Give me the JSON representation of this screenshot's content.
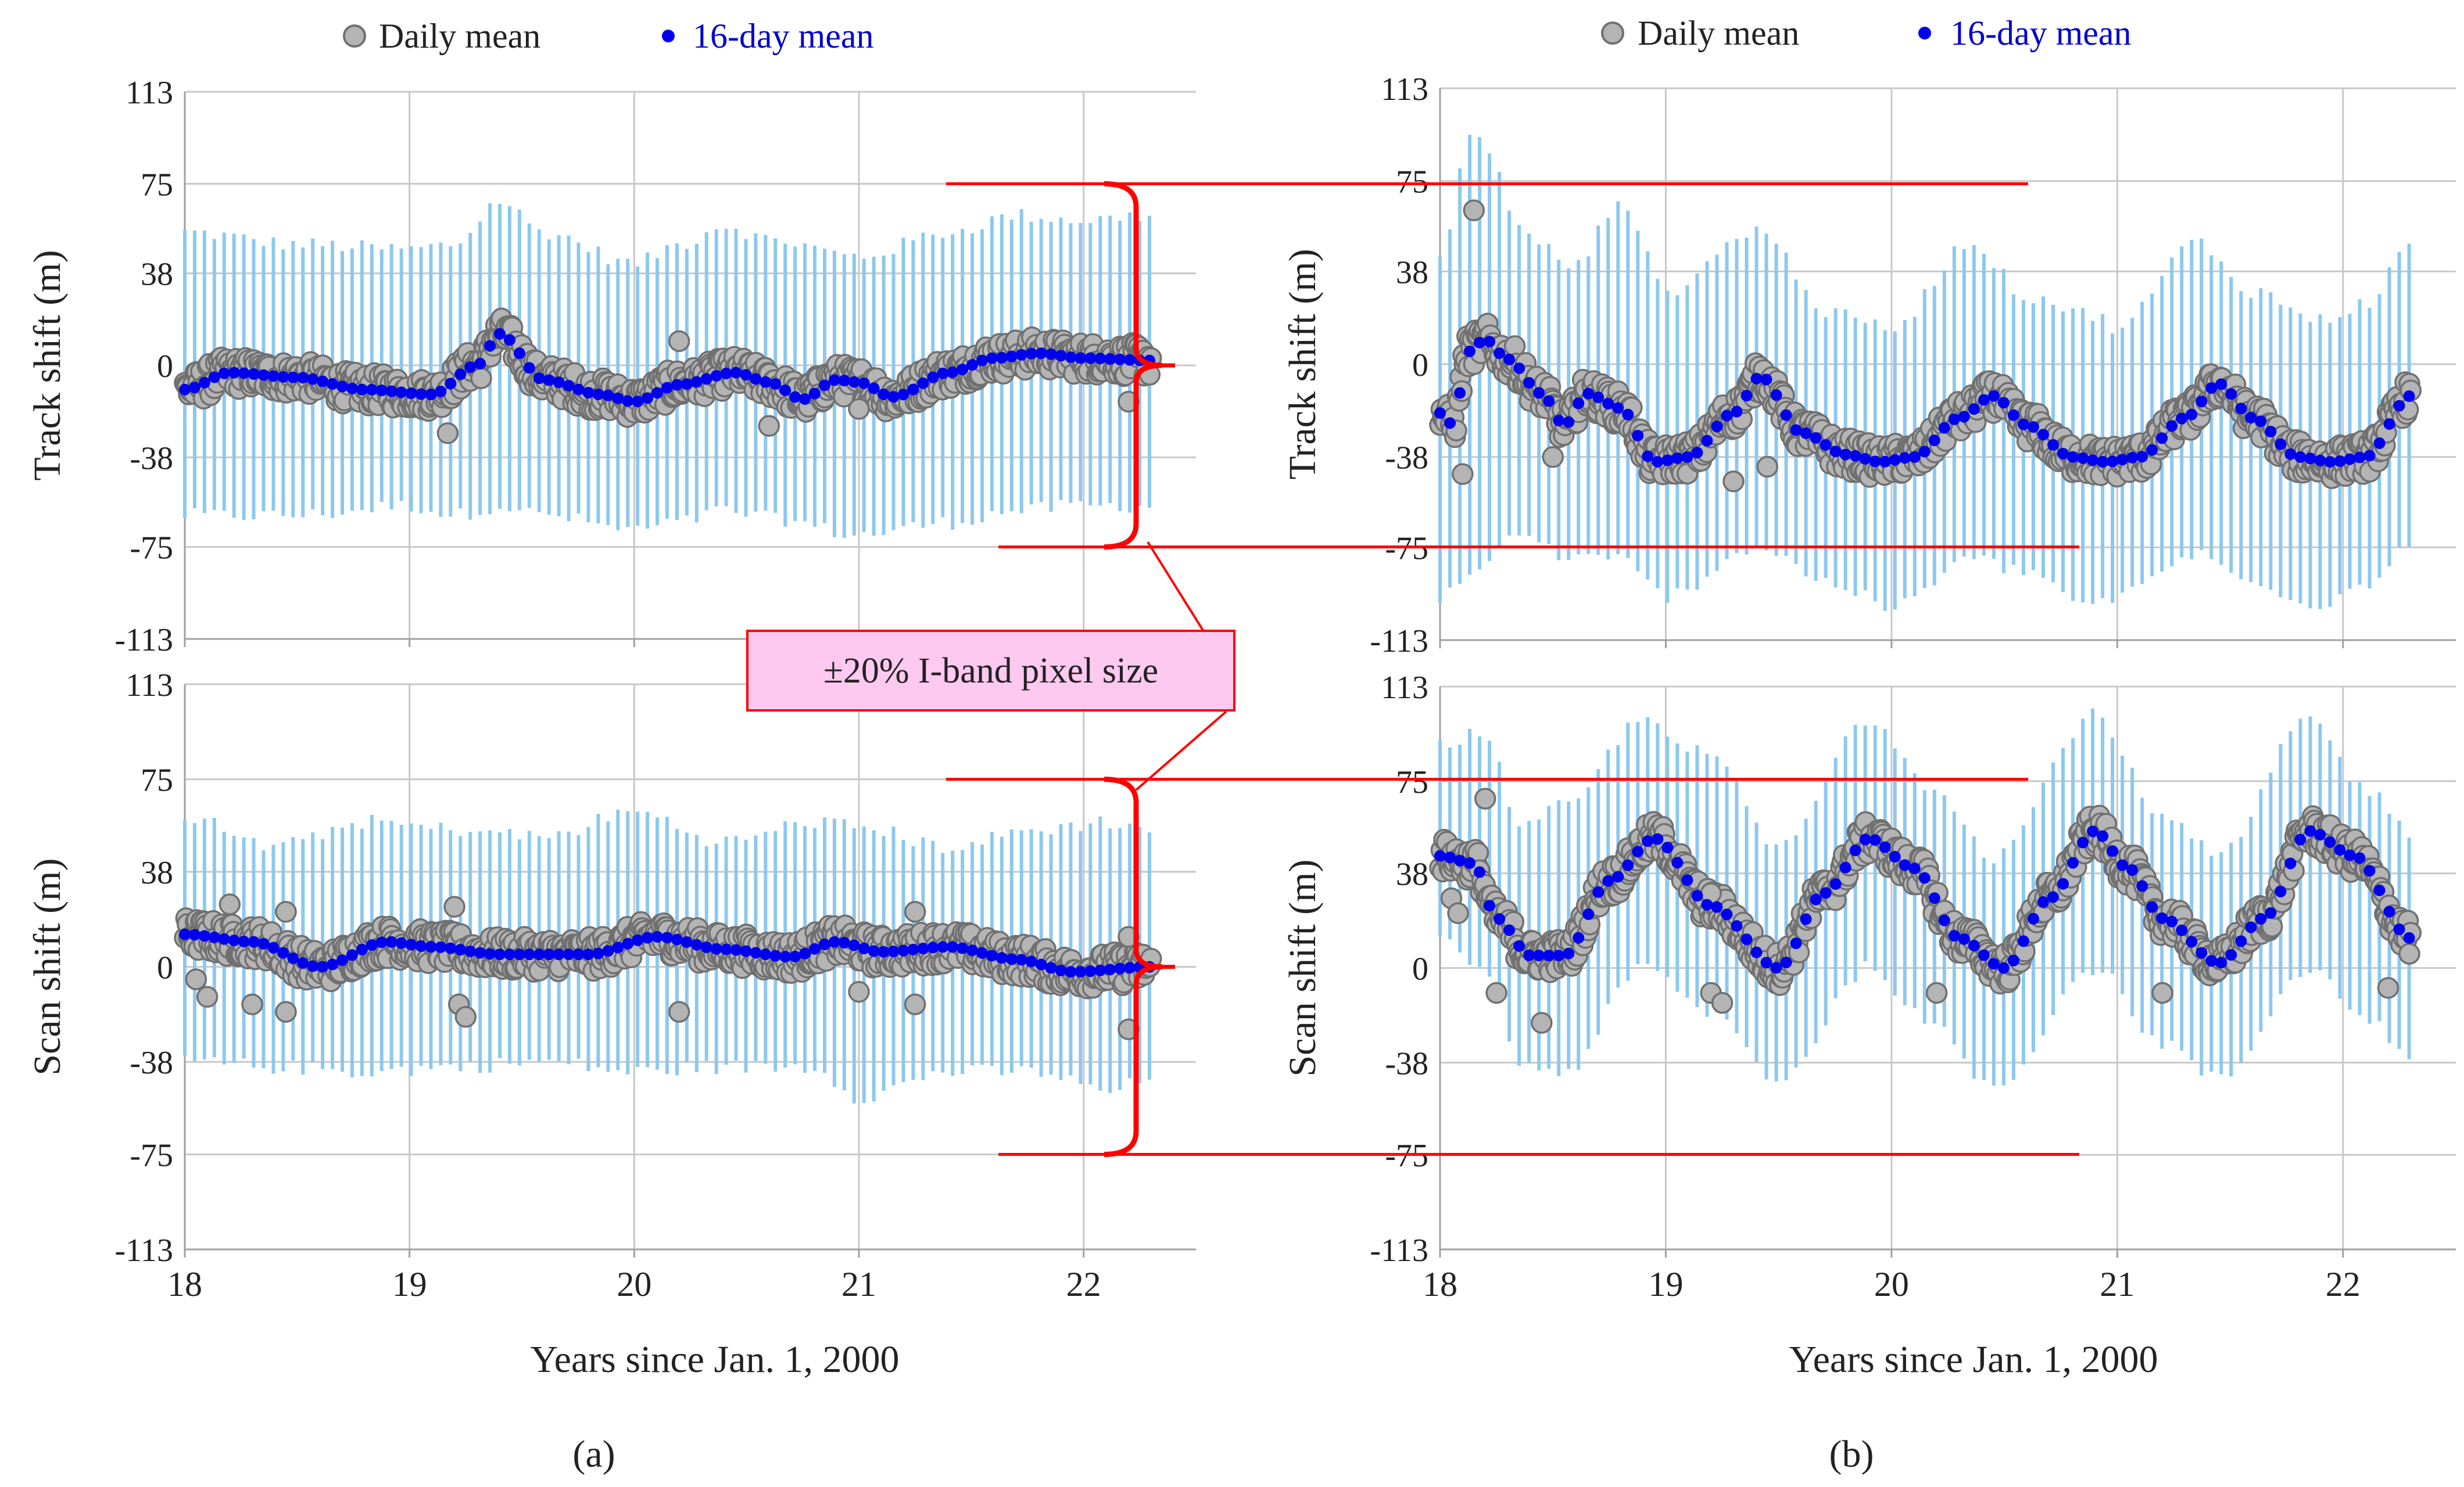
{
  "figure": {
    "legend": {
      "daily_label": "Daily mean",
      "mean16_label": "16-day mean"
    },
    "xlabel": "Years since Jan. 1, 2000",
    "annotation": "±20% I-band pixel size",
    "subfig_a": "(a)",
    "subfig_b": "(b)",
    "colors": {
      "daily": "#b4b4b4",
      "daily_edge": "#707070",
      "mean16": "#0000ee",
      "range": "#8cc8f0",
      "annotation": "#ff0000",
      "annotation_fill": "#fdc9f0",
      "grid": "#c8c8c8",
      "axis": "#a0a0a0",
      "legend_mean_text": "#0000cc"
    }
  },
  "chart_data": [
    {
      "id": "a-track",
      "type": "scatter",
      "panel": "a",
      "ylabel": "Track shift (m)",
      "xlim": [
        18,
        22.5
      ],
      "ylim": [
        -113,
        113
      ],
      "xticks": [
        18,
        19,
        20,
        21,
        22
      ],
      "xtick_labels": [
        "18",
        "19",
        "20",
        "21",
        "22"
      ],
      "yticks": [
        113,
        75,
        38,
        0,
        -38,
        -75,
        -113
      ],
      "ytick_labels": [
        "113",
        "75",
        "38",
        "0",
        "-38",
        "-75",
        "-113"
      ],
      "x_start": 18.0,
      "x_end": 22.3,
      "knots_x": [
        18.0,
        18.2,
        18.5,
        18.8,
        19.1,
        19.3,
        19.4,
        19.6,
        19.85,
        20.0,
        20.2,
        20.45,
        20.6,
        20.75,
        20.9,
        21.0,
        21.15,
        21.4,
        21.6,
        21.8,
        22.0,
        22.3
      ],
      "knots_y": [
        -10,
        -3,
        -5,
        -10,
        -12,
        0,
        13,
        -6,
        -12,
        -15,
        -8,
        -3,
        -7,
        -14,
        -6,
        -7,
        -13,
        -3,
        3,
        5,
        3,
        2
      ],
      "range_knots_x": [
        18.0,
        18.5,
        19.0,
        19.2,
        19.4,
        19.6,
        20.0,
        20.2,
        20.4,
        20.6,
        21.0,
        21.4,
        21.7,
        22.0,
        22.3
      ],
      "range_hi": [
        55,
        50,
        48,
        50,
        68,
        55,
        42,
        50,
        58,
        52,
        45,
        55,
        62,
        60,
        62
      ],
      "range_lo": [
        -62,
        -62,
        -58,
        -62,
        -58,
        -62,
        -68,
        -65,
        -60,
        -63,
        -70,
        -65,
        -60,
        -58,
        -58
      ],
      "outliers": [
        [
          19.17,
          -28
        ],
        [
          20.2,
          10
        ],
        [
          20.6,
          -25
        ],
        [
          21.0,
          -18
        ],
        [
          22.2,
          -15
        ]
      ],
      "bracket": [
        -75,
        75
      ],
      "ref_lines": [
        75,
        -75
      ]
    },
    {
      "id": "a-scan",
      "type": "scatter",
      "panel": "a",
      "ylabel": "Scan shift (m)",
      "xlim": [
        18,
        22.5
      ],
      "ylim": [
        -113,
        113
      ],
      "xticks": [
        18,
        19,
        20,
        21,
        22
      ],
      "xtick_labels": [
        "18",
        "19",
        "20",
        "21",
        "22"
      ],
      "yticks": [
        113,
        75,
        38,
        0,
        -38,
        -75,
        -113
      ],
      "ytick_labels": [
        "113",
        "75",
        "38",
        "0",
        "-38",
        "-75",
        "-113"
      ],
      "x_start": 18.0,
      "x_end": 22.3,
      "knots_x": [
        18.0,
        18.3,
        18.6,
        18.9,
        19.1,
        19.4,
        19.8,
        20.1,
        20.4,
        20.7,
        20.9,
        21.1,
        21.4,
        21.7,
        21.95,
        22.3
      ],
      "knots_y": [
        13,
        10,
        0,
        10,
        8,
        5,
        5,
        12,
        7,
        4,
        10,
        6,
        8,
        3,
        -2,
        0
      ],
      "range_knots_x": [
        18.0,
        18.4,
        18.8,
        19.2,
        19.6,
        20.0,
        20.4,
        20.8,
        21.0,
        21.4,
        21.8,
        22.1,
        22.3
      ],
      "range_hi": [
        60,
        48,
        58,
        55,
        52,
        62,
        50,
        58,
        56,
        48,
        55,
        58,
        55
      ],
      "range_lo": [
        -38,
        -40,
        -42,
        -40,
        -38,
        -42,
        -40,
        -40,
        -52,
        -42,
        -42,
        -50,
        -45
      ],
      "outliers": [
        [
          18.05,
          -5
        ],
        [
          18.1,
          -12
        ],
        [
          18.2,
          25
        ],
        [
          18.45,
          22
        ],
        [
          18.45,
          -18
        ],
        [
          18.3,
          -15
        ],
        [
          19.2,
          24
        ],
        [
          19.22,
          -15
        ],
        [
          19.25,
          -20
        ],
        [
          20.2,
          -18
        ],
        [
          21.0,
          -10
        ],
        [
          21.25,
          22
        ],
        [
          21.25,
          -15
        ],
        [
          22.2,
          -25
        ],
        [
          22.2,
          12
        ]
      ],
      "bracket": [
        -75,
        75
      ],
      "ref_lines": [
        75,
        -75
      ]
    },
    {
      "id": "b-track",
      "type": "scatter",
      "panel": "b",
      "ylabel": "Track shift (m)",
      "xlim": [
        18,
        22.5
      ],
      "ylim": [
        -113,
        113
      ],
      "xticks": [
        18,
        19,
        20,
        21,
        22
      ],
      "xtick_labels": [
        "18",
        "19",
        "20",
        "21",
        "22"
      ],
      "yticks": [
        113,
        75,
        38,
        0,
        -38,
        -75,
        -113
      ],
      "ytick_labels": [
        "113",
        "75",
        "38",
        "0",
        "-38",
        "-75",
        "-113"
      ],
      "x_start": 18.0,
      "x_end": 22.3,
      "knots_x": [
        18.0,
        18.06,
        18.12,
        18.2,
        18.3,
        18.45,
        18.55,
        18.65,
        18.8,
        18.95,
        19.1,
        19.3,
        19.42,
        19.6,
        19.8,
        19.95,
        20.1,
        20.3,
        20.45,
        20.6,
        20.8,
        20.95,
        21.1,
        21.3,
        21.45,
        21.6,
        21.8,
        21.95,
        22.1,
        22.3
      ],
      "knots_y": [
        -20,
        -25,
        5,
        10,
        2,
        -12,
        -25,
        -12,
        -18,
        -40,
        -38,
        -20,
        -5,
        -28,
        -37,
        -40,
        -38,
        -22,
        -13,
        -25,
        -38,
        -40,
        -38,
        -22,
        -8,
        -22,
        -38,
        -40,
        -38,
        -13
      ],
      "range_knots_x": [
        18.0,
        18.1,
        18.15,
        18.2,
        18.35,
        18.6,
        18.8,
        19.0,
        19.4,
        19.75,
        20.0,
        20.35,
        20.6,
        20.9,
        21.0,
        21.35,
        21.6,
        21.9,
        22.1,
        22.3
      ],
      "range_hi": [
        42,
        80,
        100,
        90,
        55,
        40,
        68,
        30,
        55,
        20,
        15,
        50,
        28,
        20,
        15,
        50,
        30,
        18,
        25,
        48
      ],
      "range_lo": [
        -95,
        -90,
        -85,
        -80,
        -70,
        -80,
        -80,
        -95,
        -75,
        -90,
        -100,
        -80,
        -85,
        -100,
        -95,
        -78,
        -90,
        -98,
        -90,
        -72
      ],
      "outliers": [
        [
          18.1,
          -45
        ],
        [
          18.15,
          63
        ],
        [
          18.5,
          -38
        ],
        [
          19.3,
          -48
        ],
        [
          19.45,
          -42
        ]
      ],
      "ref_lines": [
        75,
        -75
      ]
    },
    {
      "id": "b-scan",
      "type": "scatter",
      "panel": "b",
      "ylabel": "Scan shift (m)",
      "xlim": [
        18,
        22.5
      ],
      "ylim": [
        -113,
        113
      ],
      "xticks": [
        18,
        19,
        20,
        21,
        22
      ],
      "xtick_labels": [
        "18",
        "19",
        "20",
        "21",
        "22"
      ],
      "yticks": [
        113,
        75,
        38,
        0,
        -38,
        -75,
        -113
      ],
      "ytick_labels": [
        "113",
        "75",
        "38",
        "0",
        "-38",
        "-75",
        "-113"
      ],
      "x_start": 18.0,
      "x_end": 22.3,
      "knots_x": [
        18.0,
        18.15,
        18.25,
        18.4,
        18.55,
        18.75,
        18.95,
        19.2,
        19.5,
        19.7,
        19.9,
        20.1,
        20.3,
        20.5,
        20.7,
        20.9,
        21.05,
        21.2,
        21.45,
        21.65,
        21.85,
        22.05,
        22.3
      ],
      "knots_y": [
        45,
        42,
        20,
        5,
        5,
        35,
        52,
        25,
        0,
        30,
        52,
        40,
        12,
        0,
        28,
        55,
        40,
        20,
        2,
        20,
        55,
        45,
        12
      ],
      "range_knots_x": [
        18.0,
        18.2,
        18.35,
        18.55,
        18.9,
        19.2,
        19.5,
        19.9,
        20.2,
        20.45,
        20.9,
        21.2,
        21.45,
        21.85,
        22.1,
        22.3
      ],
      "range_hi": [
        90,
        95,
        55,
        65,
        100,
        85,
        48,
        100,
        72,
        45,
        102,
        60,
        45,
        100,
        72,
        55
      ],
      "range_lo": [
        10,
        0,
        -38,
        -42,
        0,
        -18,
        -45,
        0,
        -25,
        -48,
        0,
        -30,
        -45,
        0,
        -20,
        -35
      ],
      "outliers": [
        [
          18.05,
          28
        ],
        [
          18.08,
          22
        ],
        [
          18.2,
          68
        ],
        [
          18.25,
          -10
        ],
        [
          18.45,
          -22
        ],
        [
          19.2,
          30
        ],
        [
          19.2,
          -10
        ],
        [
          19.25,
          -14
        ],
        [
          20.2,
          -10
        ],
        [
          21.2,
          -10
        ],
        [
          22.2,
          -8
        ]
      ],
      "ref_lines": [
        75,
        -75
      ]
    }
  ]
}
